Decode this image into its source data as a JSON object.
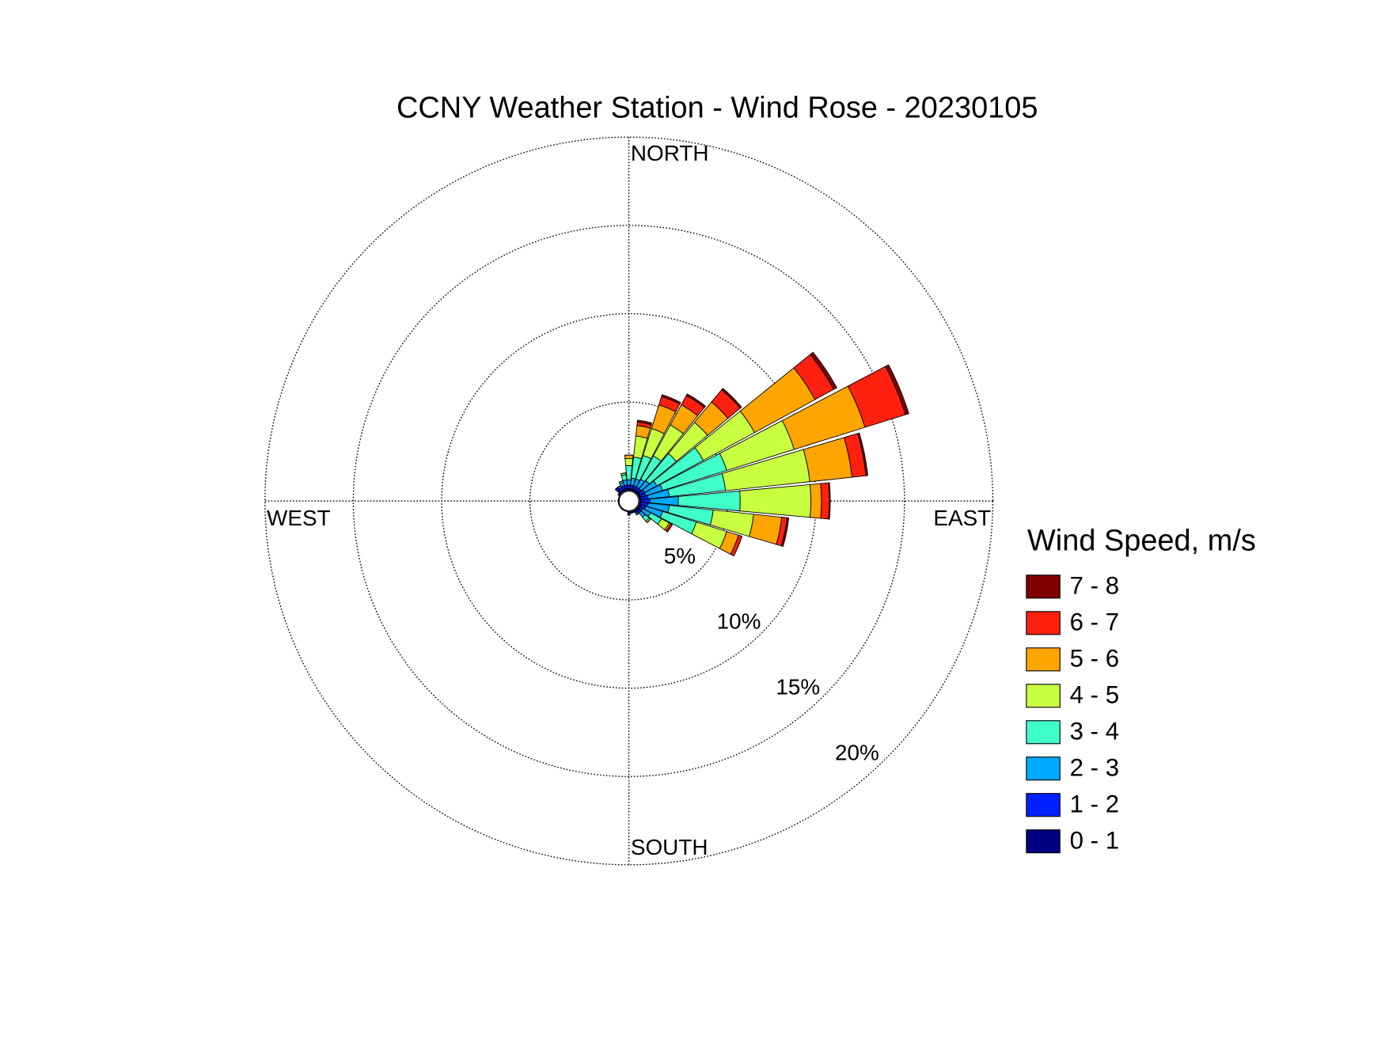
{
  "chart_data": {
    "type": "windrose",
    "title": "CCNY Weather Station - Wind Rose - 20230105",
    "direction_labels": [
      "NORTH",
      "EAST",
      "SOUTH",
      "WEST"
    ],
    "x": [
      0,
      11.25,
      22.5,
      33.75,
      45,
      56.25,
      67.5,
      78.75,
      90,
      101.25,
      112.5,
      123.75,
      135,
      146.25,
      157.5,
      168.75,
      180,
      191.25,
      202.5,
      213.75,
      225,
      236.25,
      247.5,
      258.75,
      270,
      281.25,
      292.5,
      303.75,
      315,
      326.25,
      337.5,
      348.75
    ],
    "rlim": [
      0,
      20
    ],
    "rticks": [
      {
        "value": 5,
        "label": "5%"
      },
      {
        "value": 10,
        "label": "10%"
      },
      {
        "value": 15,
        "label": "15%"
      },
      {
        "value": 20,
        "label": "20%"
      }
    ],
    "legend_title": "Wind Speed, m/s",
    "series": [
      {
        "name": "0 - 1",
        "color": "#000080",
        "values": [
          0.1,
          0.1,
          0.1,
          0.1,
          0.1,
          0.1,
          0.1,
          0.1,
          0.1,
          0.1,
          0.1,
          0.1,
          0.1,
          0.1,
          0.1,
          0.1,
          0.2,
          0,
          0,
          0,
          0,
          0,
          0,
          0,
          0,
          0,
          0,
          0.1,
          0.2,
          0.1,
          0.1,
          0.1
        ]
      },
      {
        "name": "1 - 2",
        "color": "#0020ff",
        "values": [
          0.2,
          0.2,
          0.2,
          0.2,
          0.2,
          0.3,
          0.3,
          0.4,
          0.5,
          0.4,
          0.3,
          0.2,
          0.2,
          0.1,
          0,
          0,
          0,
          0,
          0,
          0,
          0,
          0,
          0,
          0,
          0,
          0,
          0,
          0,
          0.2,
          0.2,
          0.2,
          0.2
        ]
      },
      {
        "name": "2 - 3",
        "color": "#00a8ff",
        "values": [
          0.3,
          0.4,
          0.4,
          0.5,
          0.6,
          0.8,
          1.0,
          1.2,
          1.6,
          1.2,
          1.0,
          0.5,
          0.3,
          0.1,
          0,
          0,
          0,
          0,
          0,
          0,
          0,
          0,
          0,
          0,
          0,
          0,
          0,
          0,
          0,
          0.1,
          0.2,
          0.3
        ]
      },
      {
        "name": "3 - 4",
        "color": "#40ffc8",
        "values": [
          0.8,
          1.2,
          1.4,
          1.5,
          2.0,
          3.0,
          3.8,
          3.2,
          3.5,
          2.5,
          2.0,
          0.7,
          0.3,
          0,
          0,
          0,
          0,
          0,
          0,
          0,
          0,
          0,
          0,
          0,
          0,
          0,
          0,
          0,
          0,
          0,
          0.1,
          0.3
        ]
      },
      {
        "name": "4 - 5",
        "color": "#c8ff40",
        "values": [
          0.4,
          1.2,
          1.6,
          2.0,
          2.3,
          3.3,
          4.0,
          4.8,
          4.0,
          2.3,
          1.8,
          0.5,
          0.1,
          0,
          0,
          0,
          0,
          0,
          0,
          0,
          0,
          0,
          0,
          0,
          0,
          0,
          0,
          0,
          0,
          0,
          0,
          0.1
        ]
      },
      {
        "name": "5 - 6",
        "color": "#ffa500",
        "values": [
          0.2,
          0.6,
          1.4,
          1.3,
          1.5,
          3.9,
          4.2,
          2.4,
          0.6,
          1.6,
          0.7,
          0.1,
          0,
          0,
          0,
          0,
          0,
          0,
          0,
          0,
          0,
          0,
          0,
          0,
          0,
          0,
          0,
          0,
          0,
          0,
          0,
          0
        ]
      },
      {
        "name": "6 - 7",
        "color": "#ff2010",
        "values": [
          0,
          0.2,
          0.5,
          0.6,
          0.9,
          1.2,
          2.4,
          0.8,
          0.45,
          0.3,
          0.2,
          0.1,
          0,
          0,
          0,
          0,
          0,
          0,
          0,
          0,
          0,
          0,
          0,
          0,
          0,
          0,
          0,
          0,
          0,
          0,
          0,
          0
        ]
      },
      {
        "name": "7 - 8",
        "color": "#800000",
        "values": [
          0,
          0.1,
          0.1,
          0.1,
          0.1,
          0.2,
          0.2,
          0.1,
          0.05,
          0.1,
          0,
          0,
          0,
          0,
          0,
          0,
          0,
          0,
          0,
          0,
          0,
          0,
          0,
          0,
          0,
          0,
          0,
          0,
          0,
          0,
          0,
          0
        ]
      }
    ]
  }
}
